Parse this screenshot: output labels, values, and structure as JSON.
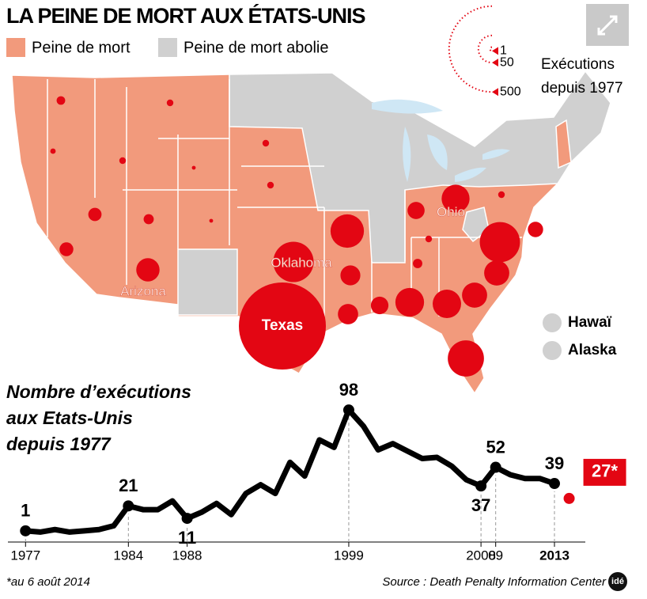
{
  "title": "LA PEINE DE MORT AUX ÉTATS-UNIS",
  "legend": {
    "death_penalty": "Peine de mort",
    "abolished": "Peine de mort abolie"
  },
  "map": {
    "type": "bubble-map",
    "color_death_penalty": "#f29a7c",
    "color_abolished": "#d0d0d0",
    "bubble_color": "#e30613",
    "bubbles": [
      {
        "value": 515,
        "label": "Texas"
      },
      {
        "value": 111,
        "label": "Oklahoma"
      },
      {
        "value": 110
      },
      {
        "value": 89
      },
      {
        "value": 76
      },
      {
        "value": 56
      },
      {
        "value": 55
      },
      {
        "value": 53,
        "label": "Ohio"
      },
      {
        "value": 43
      },
      {
        "value": 43
      },
      {
        "value": 37,
        "label": "Arizona"
      },
      {
        "value": 28
      },
      {
        "value": 27
      },
      {
        "value": 21
      },
      {
        "value": 20
      },
      {
        "value": 16
      },
      {
        "value": 13
      },
      {
        "value": 12
      },
      {
        "value": 7
      },
      {
        "value": 6
      },
      {
        "value": 5
      },
      {
        "value": 3
      },
      {
        "value": 3
      },
      {
        "value": 3
      },
      {
        "value": 3
      },
      {
        "value": 3
      },
      {
        "value": 3
      },
      {
        "value": 2
      },
      {
        "value": 1
      },
      {
        "value": 1
      }
    ],
    "size_legend": {
      "values": [
        1,
        50,
        500
      ],
      "title": [
        "Exécutions",
        "depuis 1977"
      ]
    },
    "outside": [
      "Hawaï",
      "Alaska"
    ]
  },
  "chart_data": {
    "type": "line",
    "title": [
      "Nombre d’exécutions",
      "aux Etats-Unis",
      "depuis 1977"
    ],
    "x": [
      1977,
      1978,
      1979,
      1980,
      1981,
      1982,
      1983,
      1984,
      1985,
      1986,
      1987,
      1988,
      1989,
      1990,
      1991,
      1992,
      1993,
      1994,
      1995,
      1996,
      1997,
      1998,
      1999,
      2000,
      2001,
      2002,
      2003,
      2004,
      2005,
      2006,
      2007,
      2008,
      2009,
      2010,
      2011,
      2012,
      2013,
      2014
    ],
    "series": [
      {
        "color": "#000000",
        "values": [
          1,
          0,
          2,
          0,
          1,
          2,
          5,
          21,
          18,
          18,
          25,
          11,
          16,
          23,
          14,
          31,
          38,
          31,
          56,
          45,
          74,
          68,
          98,
          85,
          66,
          71,
          65,
          59,
          60,
          53,
          42,
          37,
          52,
          46,
          43,
          43,
          39,
          null
        ],
        "value_labels": [
          "1",
          null,
          null,
          null,
          null,
          null,
          null,
          "21",
          null,
          null,
          null,
          "11",
          null,
          null,
          null,
          null,
          null,
          null,
          null,
          null,
          null,
          null,
          "98",
          null,
          null,
          null,
          null,
          null,
          null,
          null,
          null,
          "37",
          "52",
          null,
          null,
          null,
          "39",
          null
        ]
      },
      {
        "color": "#e30613",
        "values": [
          null,
          null,
          null,
          null,
          null,
          null,
          null,
          null,
          null,
          null,
          null,
          null,
          null,
          null,
          null,
          null,
          null,
          null,
          null,
          null,
          null,
          null,
          null,
          null,
          null,
          null,
          null,
          null,
          null,
          null,
          null,
          null,
          null,
          null,
          null,
          null,
          null,
          27
        ],
        "value_labels": [
          null,
          null,
          null,
          null,
          null,
          null,
          null,
          null,
          null,
          null,
          null,
          null,
          null,
          null,
          null,
          null,
          null,
          null,
          null,
          null,
          null,
          null,
          null,
          null,
          null,
          null,
          null,
          null,
          null,
          null,
          null,
          null,
          null,
          null,
          null,
          null,
          null,
          "27*"
        ]
      }
    ],
    "xlim": [
      1975.8,
      2015.1
    ],
    "ylim": [
      -8,
      100
    ],
    "xticks": [
      1977,
      1984,
      1988,
      1999,
      2008,
      {
        "value": 2009,
        "label": "09"
      },
      2013
    ],
    "footnote": "*au 6 août 2014",
    "source": "Source : Death Penalty Information Center"
  },
  "logo": "idé"
}
